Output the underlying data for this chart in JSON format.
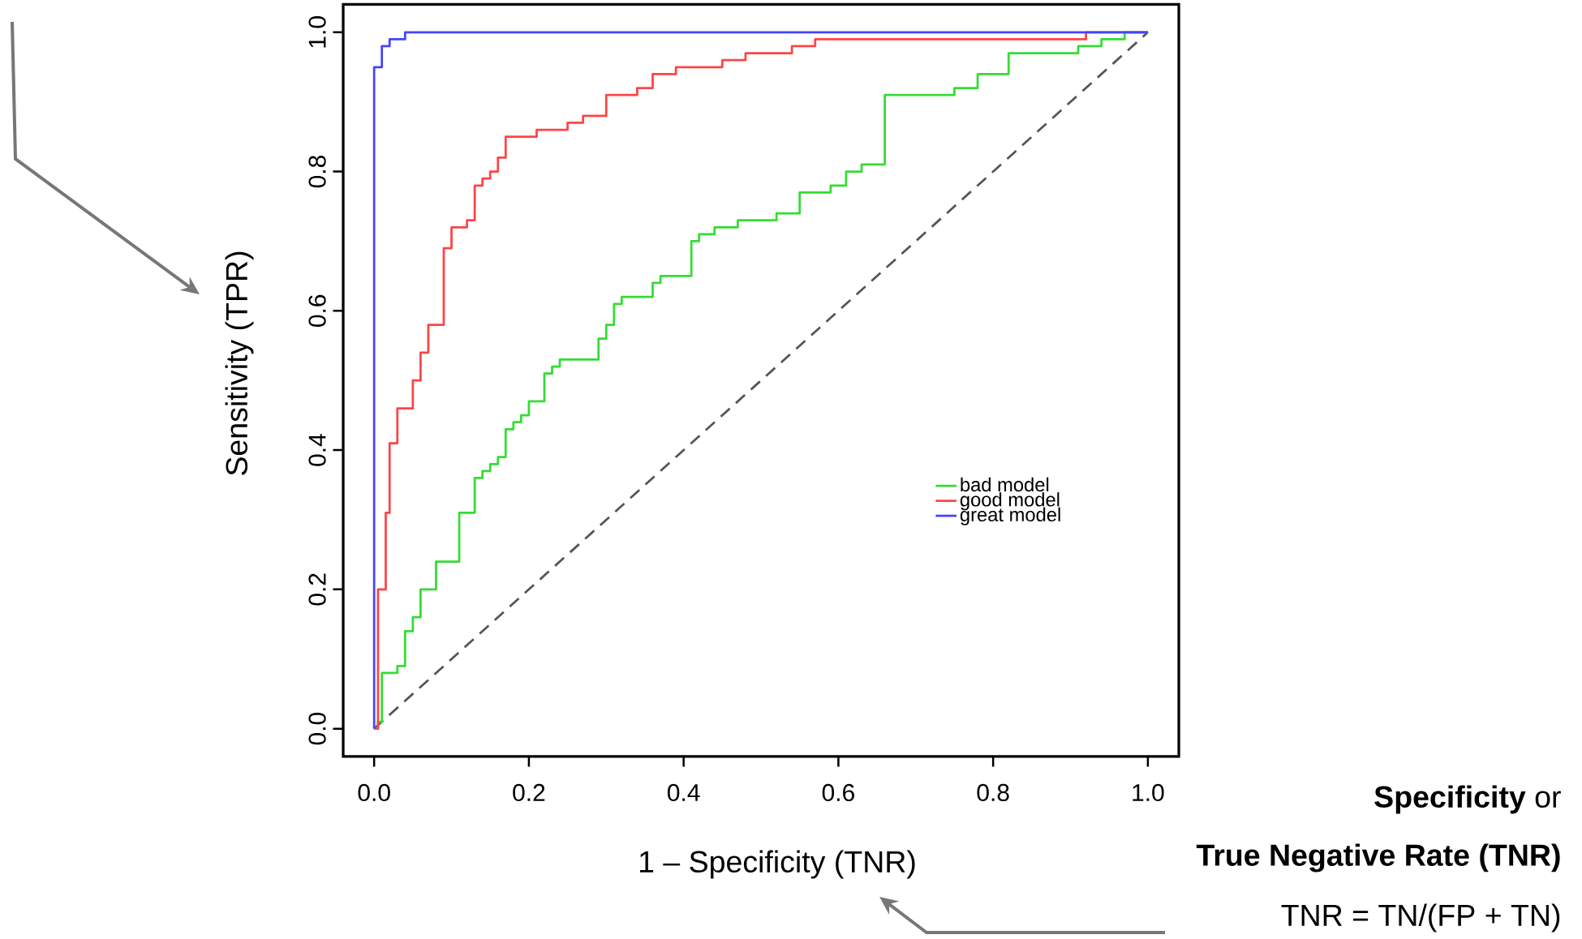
{
  "chart_data": {
    "type": "step",
    "xlabel": "1 – Specificity (TNR)",
    "ylabel": "Sensitivity (TPR)",
    "annotations": [
      "**Specificity** or",
      "**True Negative Rate (TNR)**",
      "TNR = TN/(FP + TN)"
    ],
    "xlim": [
      -0.04,
      1.04
    ],
    "ylim": [
      -0.04,
      1.04
    ],
    "xticks": [
      {
        "value": 0,
        "label": "0.0"
      },
      0.2,
      0.4,
      0.6,
      0.8,
      {
        "value": 1,
        "label": "1.0"
      }
    ],
    "yticks": [
      {
        "value": 0,
        "label": "0.0"
      },
      0.2,
      0.4,
      0.6,
      0.8,
      {
        "value": 1,
        "label": "1.0"
      }
    ],
    "legend": "right",
    "series": [
      {
        "type": "line",
        "color": "#555555",
        "line_style": "dashed",
        "x": [
          0,
          1
        ],
        "values": [
          0,
          1
        ]
      },
      {
        "name": "bad model",
        "color": "#33dd33",
        "x": [
          0,
          0.005,
          0.01,
          0.03,
          0.04,
          0.05,
          0.06,
          0.08,
          0.11,
          0.13,
          0.14,
          0.15,
          0.16,
          0.17,
          0.18,
          0.19,
          0.2,
          0.22,
          0.23,
          0.24,
          0.29,
          0.3,
          0.31,
          0.32,
          0.36,
          0.37,
          0.41,
          0.42,
          0.44,
          0.47,
          0.52,
          0.55,
          0.59,
          0.61,
          0.63,
          0.66,
          0.75,
          0.78,
          0.82,
          0.91,
          0.94,
          0.97,
          1.0
        ],
        "values": [
          0,
          0.01,
          0.08,
          0.09,
          0.14,
          0.16,
          0.2,
          0.24,
          0.31,
          0.36,
          0.37,
          0.38,
          0.39,
          0.43,
          0.44,
          0.45,
          0.47,
          0.51,
          0.52,
          0.53,
          0.56,
          0.58,
          0.61,
          0.62,
          0.64,
          0.65,
          0.7,
          0.71,
          0.72,
          0.73,
          0.74,
          0.77,
          0.78,
          0.8,
          0.81,
          0.91,
          0.92,
          0.94,
          0.97,
          0.98,
          0.99,
          1.0,
          1.0
        ]
      },
      {
        "name": "good model",
        "color": "#ff4444",
        "x": [
          0,
          0.005,
          0.015,
          0.02,
          0.03,
          0.05,
          0.06,
          0.07,
          0.09,
          0.1,
          0.12,
          0.13,
          0.14,
          0.15,
          0.16,
          0.17,
          0.21,
          0.25,
          0.27,
          0.3,
          0.34,
          0.36,
          0.39,
          0.45,
          0.48,
          0.54,
          0.57,
          0.92,
          1.0
        ],
        "values": [
          0,
          0.2,
          0.31,
          0.41,
          0.46,
          0.5,
          0.54,
          0.58,
          0.69,
          0.72,
          0.73,
          0.78,
          0.79,
          0.8,
          0.82,
          0.85,
          0.86,
          0.87,
          0.88,
          0.91,
          0.92,
          0.94,
          0.95,
          0.96,
          0.97,
          0.98,
          0.99,
          1.0,
          1.0
        ]
      },
      {
        "name": "great model",
        "color": "#4444ff",
        "x": [
          0,
          0,
          0.01,
          0.02,
          0.04,
          1.0
        ],
        "values": [
          0,
          0.95,
          0.98,
          0.99,
          1.0,
          1.0
        ]
      }
    ]
  }
}
